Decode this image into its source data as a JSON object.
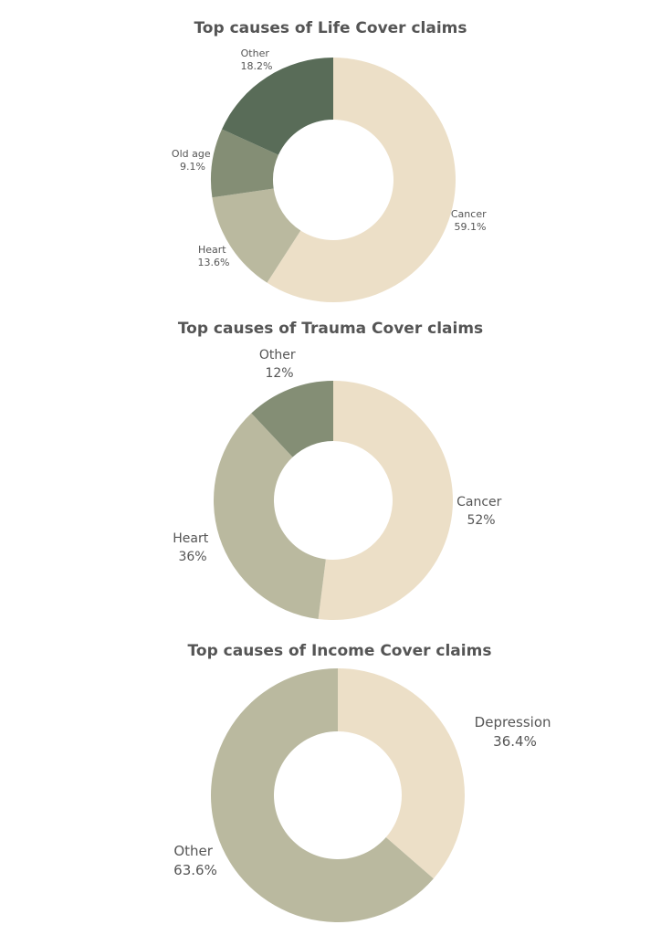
{
  "chart_data": [
    {
      "type": "pie",
      "style": "donut",
      "title": "Top causes of Life Cover claims",
      "slices": [
        {
          "label": "Cancer",
          "value": 59.1,
          "display": "59.1%",
          "color": "#ecdfc7"
        },
        {
          "label": "Heart",
          "value": 13.6,
          "display": "13.6%",
          "color": "#bab99f"
        },
        {
          "label": "Old age",
          "value": 9.1,
          "display": "9.1%",
          "color": "#848e75"
        },
        {
          "label": "Other",
          "value": 18.2,
          "display": "18.2%",
          "color": "#596c58"
        }
      ]
    },
    {
      "type": "pie",
      "style": "donut",
      "title": "Top causes of Trauma Cover claims",
      "slices": [
        {
          "label": "Cancer",
          "value": 52,
          "display": "52%",
          "color": "#ecdfc7"
        },
        {
          "label": "Heart",
          "value": 36,
          "display": "36%",
          "color": "#bab99f"
        },
        {
          "label": "Other",
          "value": 12,
          "display": "12%",
          "color": "#848e75"
        }
      ]
    },
    {
      "type": "pie",
      "style": "donut",
      "title": "Top causes of Income Cover claims",
      "slices": [
        {
          "label": "Depression",
          "value": 36.4,
          "display": "36.4%",
          "color": "#ecdfc7"
        },
        {
          "label": "Other",
          "value": 63.6,
          "display": "63.6%",
          "color": "#bab99f"
        }
      ]
    }
  ]
}
